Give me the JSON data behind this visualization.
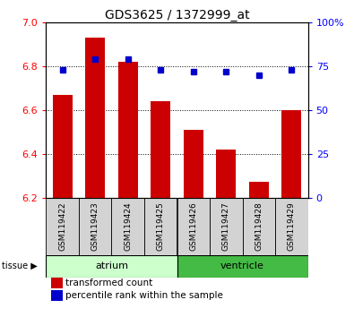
{
  "title": "GDS3625 / 1372999_at",
  "samples": [
    "GSM119422",
    "GSM119423",
    "GSM119424",
    "GSM119425",
    "GSM119426",
    "GSM119427",
    "GSM119428",
    "GSM119429"
  ],
  "transformed_counts": [
    6.67,
    6.93,
    6.82,
    6.64,
    6.51,
    6.42,
    6.27,
    6.6
  ],
  "percentile_ranks": [
    73,
    79,
    79,
    73,
    72,
    72,
    70,
    73
  ],
  "ylim_left": [
    6.2,
    7.0
  ],
  "ylim_right": [
    0,
    100
  ],
  "yticks_left": [
    6.2,
    6.4,
    6.6,
    6.8,
    7.0
  ],
  "yticks_right": [
    0,
    25,
    50,
    75,
    100
  ],
  "ytick_labels_right": [
    "0",
    "25",
    "50",
    "75",
    "100%"
  ],
  "bar_color": "#cc0000",
  "dot_color": "#0000cc",
  "atrium_color_light": "#ccffcc",
  "atrium_color": "#aaddaa",
  "ventricle_color": "#44bb44",
  "gray_bg": "#d3d3d3",
  "tissue_label": "tissue",
  "legend_items": [
    {
      "label": "transformed count",
      "color": "#cc0000",
      "marker": "s"
    },
    {
      "label": "percentile rank within the sample",
      "color": "#0000cc",
      "marker": "s"
    }
  ]
}
